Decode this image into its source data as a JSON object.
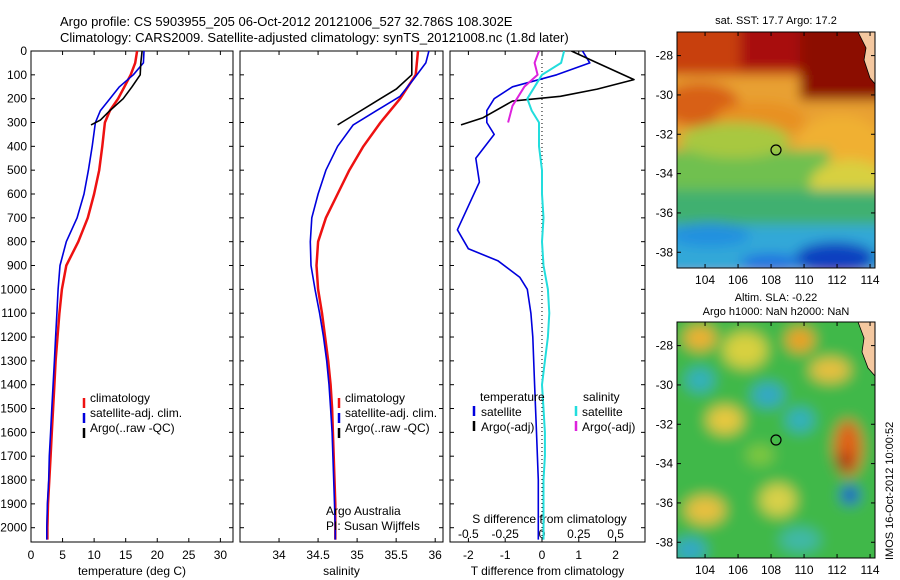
{
  "header": {
    "line1": "Argo profile: CS 5903955_205 06-Oct-2012 20121006_527 32.786S 108.302E",
    "line2": "Climatology: CARS2009. Satellite-adjusted climatology: synTS_20121008.nc (1.8d later)"
  },
  "colors": {
    "climatology": "#ee1111",
    "satellite": "#0000dd",
    "argo": "#000000",
    "sat_salinity": "#22dddd",
    "argo_salinity_adj": "#dd22dd"
  },
  "chart_data": [
    {
      "type": "line",
      "xlabel": "temperature (deg C)",
      "xlim": [
        0,
        32
      ],
      "ylim": [
        2060,
        0
      ],
      "xticks": [
        "0",
        "5",
        "10",
        "15",
        "20",
        "25",
        "30"
      ],
      "xtick_values": [
        0,
        5,
        10,
        15,
        20,
        25,
        30
      ],
      "yticks": [
        "0",
        "100",
        "200",
        "300",
        "400",
        "500",
        "600",
        "700",
        "800",
        "900",
        "1000",
        "1100",
        "1200",
        "1300",
        "1400",
        "1500",
        "1600",
        "1700",
        "1800",
        "1900",
        "2000"
      ],
      "ytick_values": [
        0,
        100,
        200,
        300,
        400,
        500,
        600,
        700,
        800,
        900,
        1000,
        1100,
        1200,
        1300,
        1400,
        1500,
        1600,
        1700,
        1800,
        1900,
        2000
      ],
      "legend": [
        "climatology",
        "satellite-adj. clim.",
        "Argo(..raw -QC)"
      ],
      "series": [
        {
          "name": "climatology",
          "color": "#ee1111",
          "points": [
            [
              16.8,
              0
            ],
            [
              16.5,
              50
            ],
            [
              15.8,
              100
            ],
            [
              14.8,
              150
            ],
            [
              13.8,
              200
            ],
            [
              12.5,
              250
            ],
            [
              11.7,
              300
            ],
            [
              11.3,
              400
            ],
            [
              10.8,
              500
            ],
            [
              10.0,
              600
            ],
            [
              9.0,
              700
            ],
            [
              7.5,
              800
            ],
            [
              5.6,
              900
            ],
            [
              4.9,
              1000
            ],
            [
              4.5,
              1100
            ],
            [
              4.2,
              1200
            ],
            [
              3.9,
              1300
            ],
            [
              3.7,
              1400
            ],
            [
              3.5,
              1500
            ],
            [
              3.3,
              1600
            ],
            [
              3.1,
              1700
            ],
            [
              2.9,
              1800
            ],
            [
              2.7,
              1900
            ],
            [
              2.6,
              2000
            ],
            [
              2.6,
              2050
            ]
          ]
        },
        {
          "name": "satellite-adj. clim.",
          "color": "#0000dd",
          "points": [
            [
              17.9,
              0
            ],
            [
              17.8,
              50
            ],
            [
              16.2,
              100
            ],
            [
              14.0,
              150
            ],
            [
              12.5,
              200
            ],
            [
              11.0,
              250
            ],
            [
              10.2,
              300
            ],
            [
              9.7,
              400
            ],
            [
              9.1,
              500
            ],
            [
              8.4,
              600
            ],
            [
              7.3,
              700
            ],
            [
              5.6,
              800
            ],
            [
              4.6,
              900
            ],
            [
              4.3,
              1000
            ],
            [
              4.1,
              1100
            ],
            [
              3.9,
              1200
            ],
            [
              3.7,
              1300
            ],
            [
              3.5,
              1400
            ],
            [
              3.3,
              1500
            ],
            [
              3.1,
              1600
            ],
            [
              2.9,
              1700
            ],
            [
              2.8,
              1800
            ],
            [
              2.6,
              1900
            ],
            [
              2.5,
              2000
            ],
            [
              2.5,
              2050
            ]
          ]
        },
        {
          "name": "Argo(..raw -QC)",
          "color": "#000000",
          "points": [
            [
              17.6,
              0
            ],
            [
              17.4,
              50
            ],
            [
              17.3,
              100
            ],
            [
              16.0,
              150
            ],
            [
              14.6,
              200
            ],
            [
              12.5,
              250
            ],
            [
              11.0,
              290
            ],
            [
              9.5,
              310
            ]
          ]
        }
      ]
    },
    {
      "type": "line",
      "xlabel": "salinity",
      "xlim": [
        33.5,
        36.1
      ],
      "ylim": [
        2060,
        0
      ],
      "xticks": [
        "34",
        "34.5",
        "35",
        "35.5",
        "36"
      ],
      "xtick_values": [
        34,
        34.5,
        35,
        35.5,
        36
      ],
      "legend": [
        "climatology",
        "satellite-adj. clim.",
        "Argo(..raw -QC)"
      ],
      "annotations": [
        "Argo Australia",
        "PI: Susan Wijffels"
      ],
      "series": [
        {
          "name": "climatology",
          "color": "#ee1111",
          "points": [
            [
              35.78,
              0
            ],
            [
              35.75,
              100
            ],
            [
              35.55,
              200
            ],
            [
              35.3,
              300
            ],
            [
              35.08,
              400
            ],
            [
              34.9,
              500
            ],
            [
              34.75,
              600
            ],
            [
              34.6,
              700
            ],
            [
              34.5,
              800
            ],
            [
              34.48,
              900
            ],
            [
              34.5,
              1000
            ],
            [
              34.55,
              1100
            ],
            [
              34.59,
              1200
            ],
            [
              34.63,
              1300
            ],
            [
              34.66,
              1400
            ],
            [
              34.68,
              1500
            ],
            [
              34.69,
              1600
            ],
            [
              34.7,
              1700
            ],
            [
              34.71,
              1800
            ],
            [
              34.72,
              1900
            ],
            [
              34.72,
              2000
            ],
            [
              34.72,
              2050
            ]
          ]
        },
        {
          "name": "satellite-adj. clim.",
          "color": "#0000dd",
          "points": [
            [
              35.92,
              0
            ],
            [
              35.88,
              50
            ],
            [
              35.72,
              120
            ],
            [
              35.55,
              190
            ],
            [
              35.25,
              250
            ],
            [
              34.95,
              310
            ],
            [
              34.75,
              400
            ],
            [
              34.6,
              500
            ],
            [
              34.5,
              600
            ],
            [
              34.42,
              700
            ],
            [
              34.4,
              800
            ],
            [
              34.41,
              900
            ],
            [
              34.46,
              1000
            ],
            [
              34.52,
              1100
            ],
            [
              34.57,
              1200
            ],
            [
              34.61,
              1300
            ],
            [
              34.64,
              1400
            ],
            [
              34.66,
              1500
            ],
            [
              34.68,
              1600
            ],
            [
              34.69,
              1700
            ],
            [
              34.7,
              1800
            ],
            [
              34.71,
              1900
            ],
            [
              34.72,
              2000
            ],
            [
              34.72,
              2050
            ]
          ]
        },
        {
          "name": "Argo(..raw -QC)",
          "color": "#000000",
          "points": [
            [
              35.7,
              0
            ],
            [
              35.7,
              100
            ],
            [
              35.5,
              160
            ],
            [
              35.2,
              220
            ],
            [
              35.0,
              260
            ],
            [
              34.8,
              300
            ],
            [
              34.75,
              310
            ]
          ]
        }
      ]
    },
    {
      "type": "line",
      "xlabel": "T difference from climatology",
      "secondary_xlabel": "S difference from climatology",
      "xlim": [
        -2.5,
        2.8
      ],
      "ylim": [
        2060,
        0
      ],
      "xticks": [
        "-2",
        "-1",
        "0",
        "1",
        "2"
      ],
      "xtick_values": [
        -2,
        -1,
        0,
        1,
        2
      ],
      "secondary_xticks": [
        "-0.5",
        "-0.25",
        "0",
        "0.25",
        "0.5"
      ],
      "secondary_xlim": [
        -0.625,
        0.7
      ],
      "secondary_xtick_values": [
        -0.5,
        -0.25,
        0,
        0.25,
        0.5
      ],
      "legend": [
        "temperature",
        "satellite",
        "Argo(-adj)",
        "salinity",
        "satellite",
        "Argo(-adj)"
      ],
      "series": [
        {
          "name": "temperature satellite",
          "color": "#0000dd",
          "units": "T",
          "points": [
            [
              1.1,
              0
            ],
            [
              1.3,
              50
            ],
            [
              0.4,
              100
            ],
            [
              -0.8,
              150
            ],
            [
              -1.3,
              200
            ],
            [
              -1.5,
              250
            ],
            [
              -1.5,
              300
            ],
            [
              -1.3,
              350
            ],
            [
              -1.8,
              450
            ],
            [
              -1.7,
              550
            ],
            [
              -2.0,
              650
            ],
            [
              -2.3,
              750
            ],
            [
              -2.0,
              830
            ],
            [
              -1.2,
              880
            ],
            [
              -0.6,
              950
            ],
            [
              -0.4,
              1000
            ],
            [
              -0.3,
              1100
            ],
            [
              -0.25,
              1200
            ],
            [
              -0.2,
              1400
            ],
            [
              -0.15,
              1600
            ],
            [
              -0.1,
              1800
            ],
            [
              -0.1,
              2000
            ],
            [
              -0.1,
              2050
            ]
          ]
        },
        {
          "name": "temperature Argo(-adj)",
          "color": "#000000",
          "units": "T",
          "points": [
            [
              0.8,
              0
            ],
            [
              1.5,
              50
            ],
            [
              2.5,
              120
            ],
            [
              1.5,
              160
            ],
            [
              0.5,
              190
            ],
            [
              -0.8,
              210
            ],
            [
              -1.6,
              280
            ],
            [
              -2.2,
              310
            ]
          ]
        },
        {
          "name": "salinity satellite",
          "color": "#22dddd",
          "units": "S",
          "points": [
            [
              0.15,
              0
            ],
            [
              0.13,
              50
            ],
            [
              0.0,
              100
            ],
            [
              -0.05,
              150
            ],
            [
              -0.1,
              200
            ],
            [
              -0.07,
              250
            ],
            [
              -0.02,
              300
            ],
            [
              -0.02,
              400
            ],
            [
              0.0,
              500
            ],
            [
              0.0,
              600
            ],
            [
              0.01,
              700
            ],
            [
              0.0,
              800
            ],
            [
              0.01,
              900
            ],
            [
              0.04,
              1000
            ],
            [
              0.05,
              1100
            ],
            [
              0.04,
              1200
            ],
            [
              0.02,
              1300
            ],
            [
              0.0,
              1400
            ],
            [
              0.01,
              1500
            ],
            [
              0.02,
              1600
            ],
            [
              0.02,
              1700
            ],
            [
              0.01,
              1800
            ],
            [
              0.01,
              1900
            ],
            [
              0.01,
              2000
            ],
            [
              0.01,
              2050
            ]
          ]
        },
        {
          "name": "salinity Argo(-adj)",
          "color": "#dd22dd",
          "units": "S",
          "points": [
            [
              -0.02,
              0
            ],
            [
              -0.05,
              50
            ],
            [
              -0.03,
              100
            ],
            [
              -0.12,
              150
            ],
            [
              -0.2,
              230
            ],
            [
              -0.23,
              300
            ]
          ]
        }
      ]
    },
    {
      "type": "heatmap",
      "title": "sat. SST: 17.7 Argo: 17.2",
      "xlim": [
        102.3,
        114.3
      ],
      "ylim": [
        -38.8,
        -26.8
      ],
      "xticks": [
        "104",
        "106",
        "108",
        "110",
        "112",
        "114"
      ],
      "xtick_values": [
        104,
        106,
        108,
        110,
        112,
        114
      ],
      "yticks": [
        "-28",
        "-30",
        "-32",
        "-34",
        "-36",
        "-38"
      ],
      "ytick_values": [
        -28,
        -30,
        -32,
        -34,
        -36,
        -38
      ],
      "marker": [
        108.3,
        -32.8
      ]
    },
    {
      "type": "heatmap",
      "title": "Altim. SLA: -0.22",
      "subtitle": "Argo h1000: NaN h2000: NaN",
      "xlim": [
        102.3,
        114.3
      ],
      "ylim": [
        -38.8,
        -26.8
      ],
      "xticks": [
        "104",
        "106",
        "108",
        "110",
        "112",
        "114"
      ],
      "xtick_values": [
        104,
        106,
        108,
        110,
        112,
        114
      ],
      "yticks": [
        "-28",
        "-30",
        "-32",
        "-34",
        "-36",
        "-38"
      ],
      "ytick_values": [
        -28,
        -30,
        -32,
        -34,
        -36,
        -38
      ],
      "marker": [
        108.3,
        -32.8
      ]
    }
  ],
  "footer": {
    "timestamp": "IMOS 16-Oct-2012 10:00:52"
  }
}
